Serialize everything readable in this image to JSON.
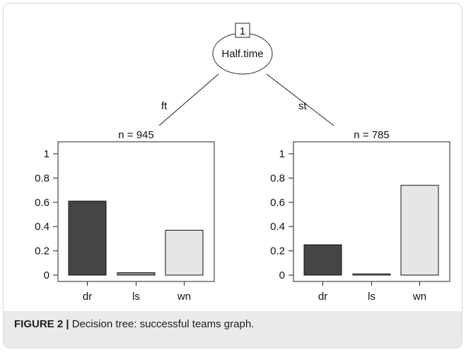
{
  "caption": {
    "label": "FIGURE 2 |",
    "text": " Decision tree: successful teams graph."
  },
  "chart_data": {
    "type": "bar",
    "root_node": {
      "id": "1",
      "variable": "Half.time"
    },
    "branches": [
      "ft",
      "st"
    ],
    "panels": [
      {
        "branch": "ft",
        "n_label": "n = 945",
        "categories": [
          "dr",
          "ls",
          "wn"
        ],
        "values": [
          0.61,
          0.02,
          0.37
        ]
      },
      {
        "branch": "st",
        "n_label": "n = 785",
        "categories": [
          "dr",
          "ls",
          "wn"
        ],
        "values": [
          0.25,
          0.01,
          0.74
        ]
      }
    ],
    "ylim": [
      0,
      1
    ],
    "yticks": [
      0,
      0.2,
      0.4,
      0.6,
      0.8,
      1
    ],
    "ytick_labels": [
      "0",
      "0.2",
      "0.4",
      "0.6",
      "0.8",
      "1"
    ],
    "bar_colors": [
      "#454545",
      "#8f8f8f",
      "#e6e6e6"
    ],
    "xlabel": "",
    "ylabel": ""
  }
}
